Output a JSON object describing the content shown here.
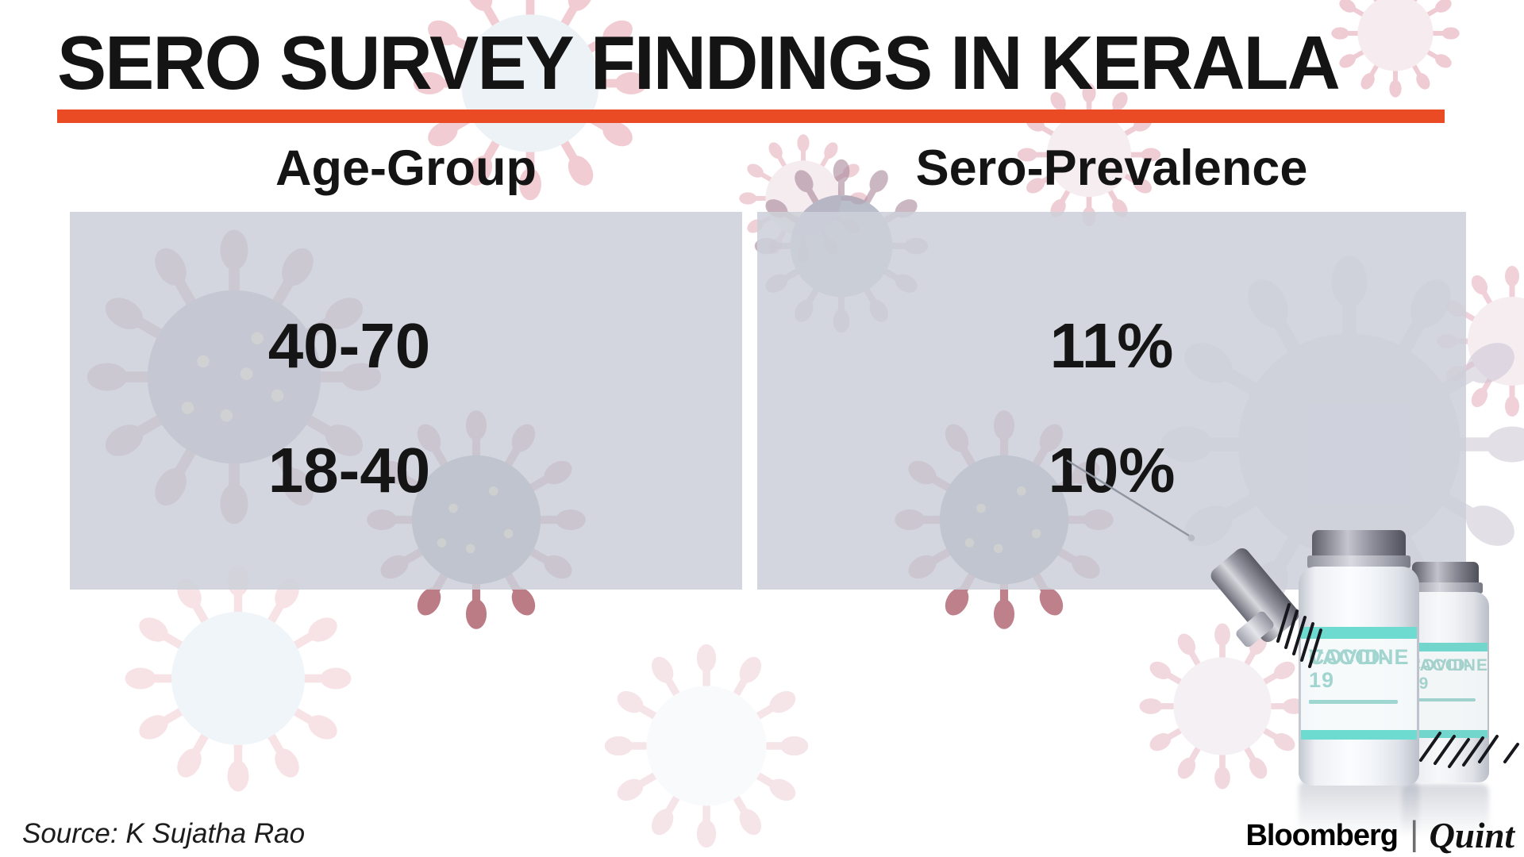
{
  "title": "SERO SURVEY FINDINGS IN KERALA",
  "accent_color": "#ea4b25",
  "panel_color": "#cdd0d9",
  "table": {
    "col1_header": "Age-Group",
    "col2_header": "Sero-Prevalence",
    "rows": [
      {
        "age_group": "40-70",
        "sero_prevalence": "11%"
      },
      {
        "age_group": "18-40",
        "sero_prevalence": "10%"
      }
    ]
  },
  "source": "Source: K Sujatha Rao",
  "footer_logo": {
    "bloomberg": "Bloomberg",
    "separator": "|",
    "quint": "Quint"
  },
  "vial_label": {
    "line1": "COVID-19",
    "line2": "VACCINE"
  },
  "chart_data": {
    "type": "table",
    "title": "SERO SURVEY FINDINGS IN KERALA",
    "columns": [
      "Age-Group",
      "Sero-Prevalence"
    ],
    "rows": [
      [
        "40-70",
        "11%"
      ],
      [
        "18-40",
        "10%"
      ]
    ],
    "series": [
      {
        "name": "Sero-Prevalence (%)",
        "categories": [
          "40-70",
          "18-40"
        ],
        "values": [
          11,
          10
        ]
      }
    ],
    "source": "K Sujatha Rao"
  }
}
